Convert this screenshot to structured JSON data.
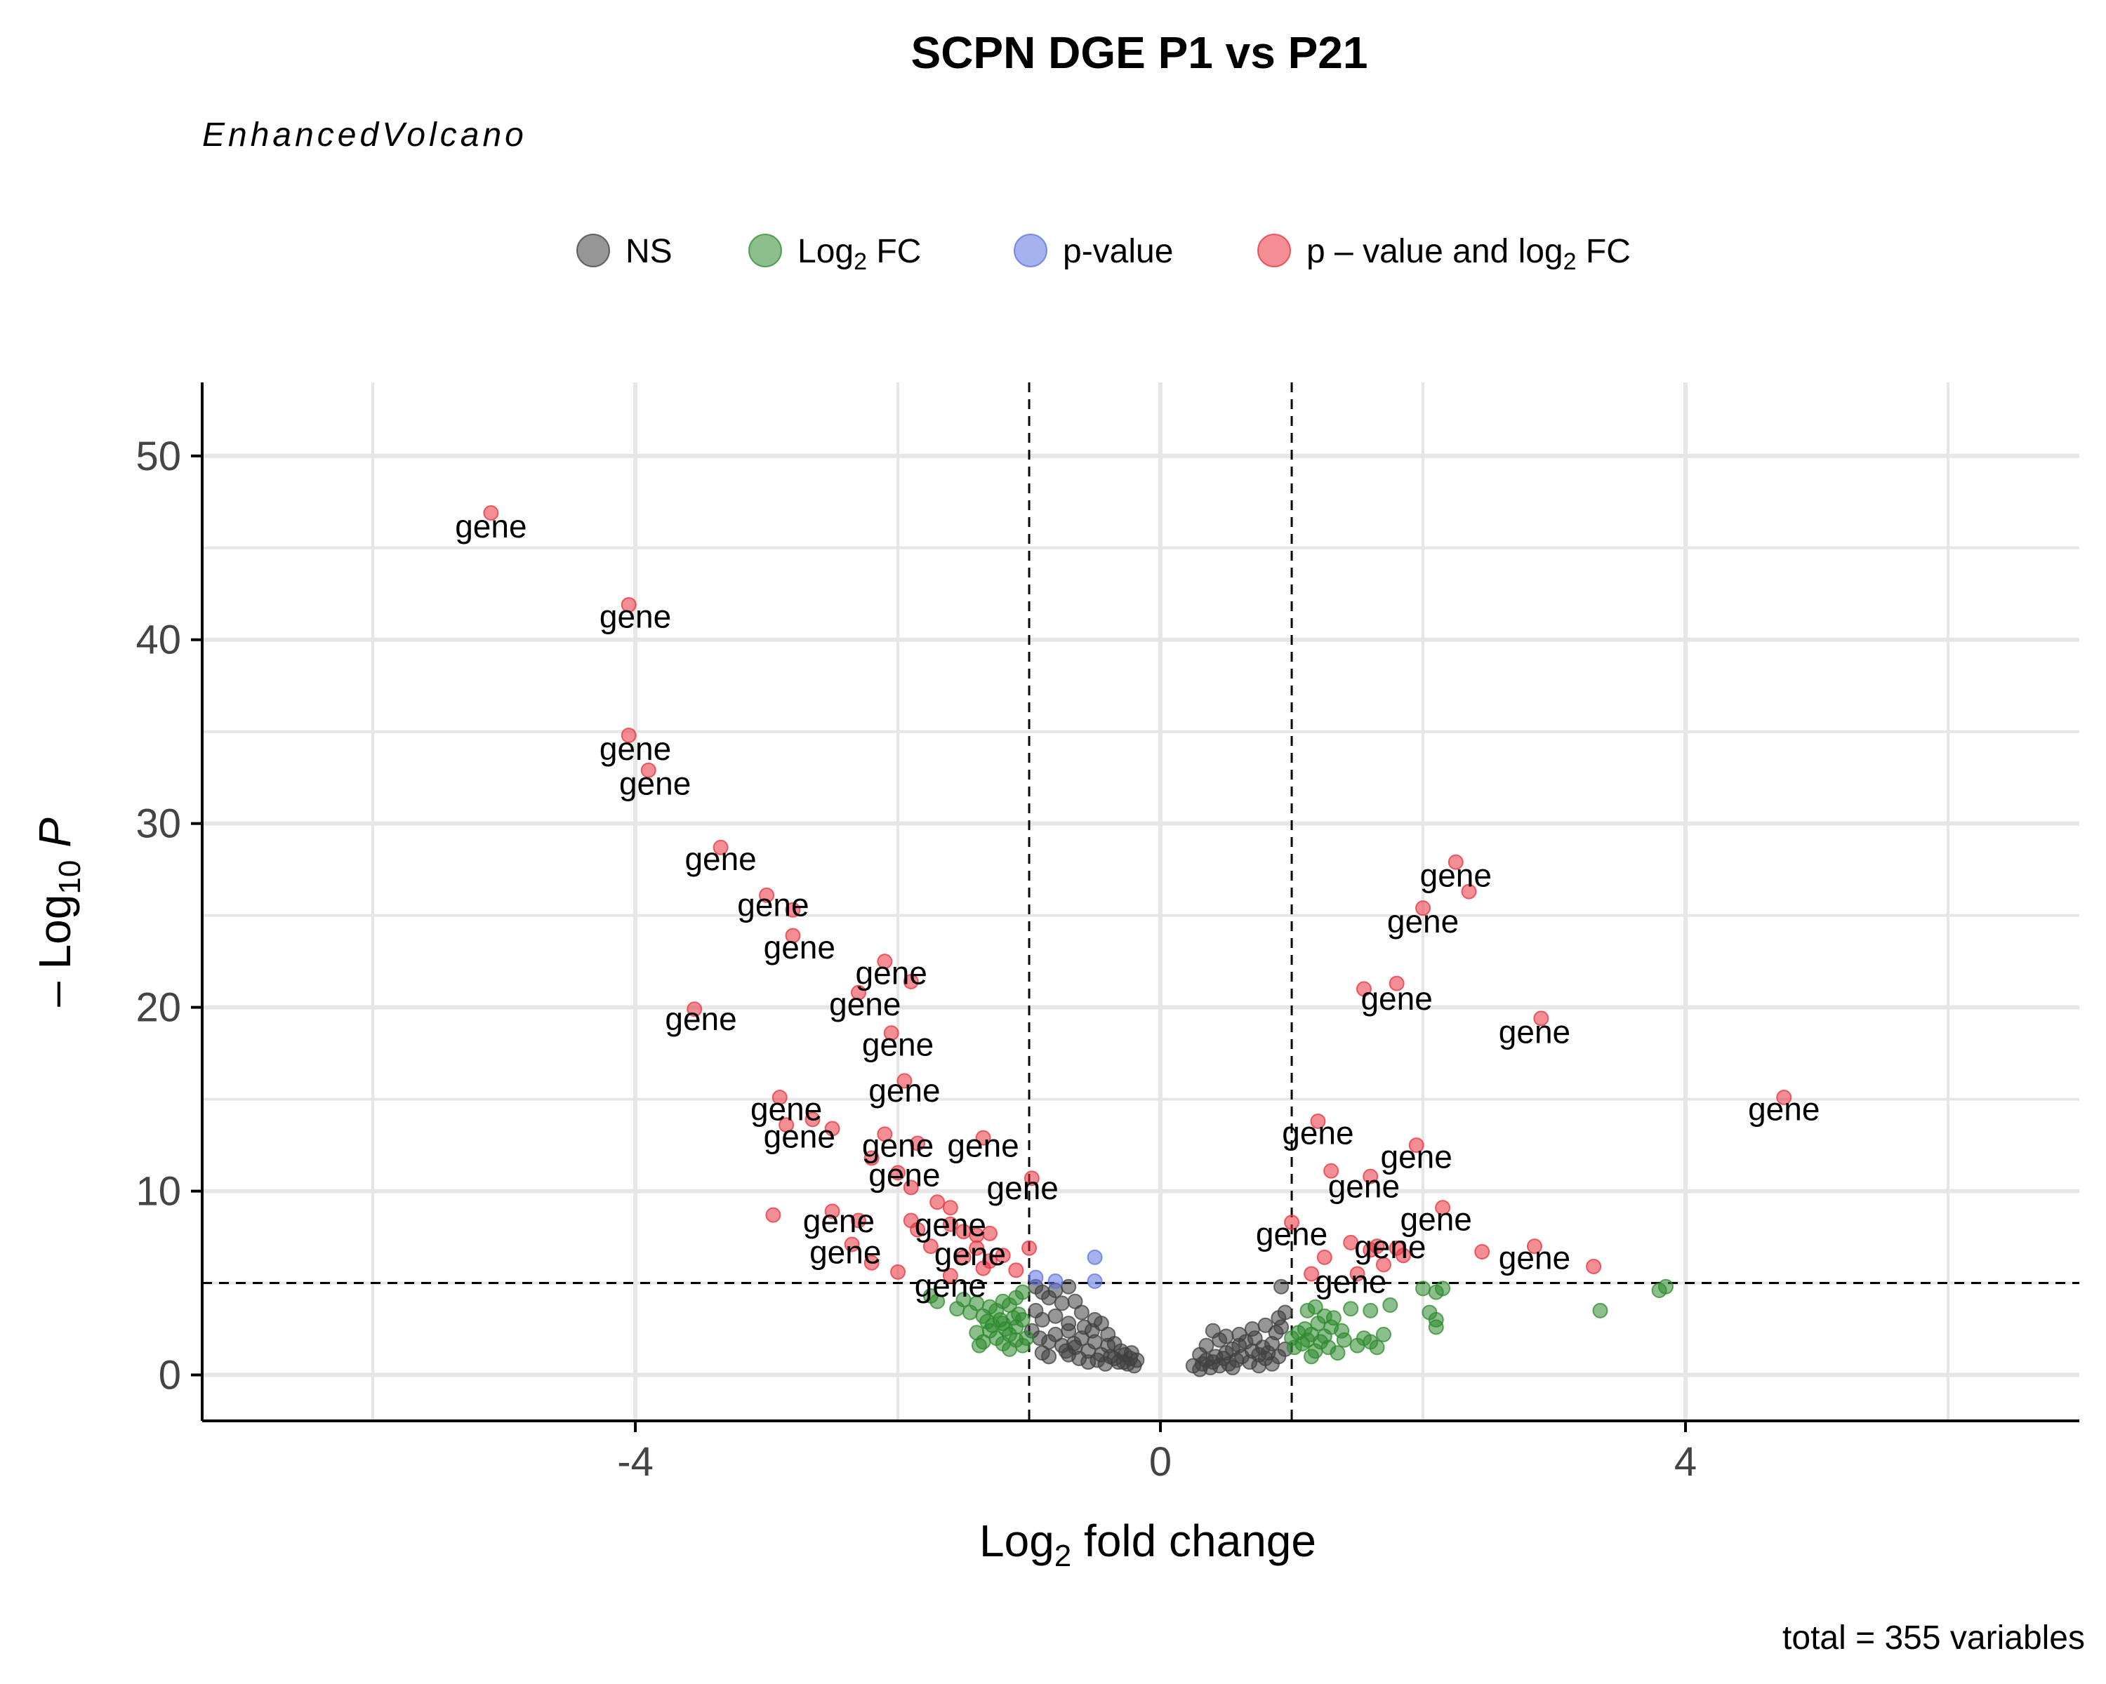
{
  "chart_data": {
    "type": "scatter",
    "title": "SCPN DGE P1 vs P21",
    "subtitle": "EnhancedVolcano",
    "caption": "total = 355 variables",
    "xlabel": {
      "main": "Log",
      "sub": "2",
      "rest": " fold change"
    },
    "ylabel": {
      "pre": "– Log",
      "sub": "10",
      "italic": " P"
    },
    "xlim": [
      -7.3,
      7.0
    ],
    "ylim": [
      -2.5,
      54
    ],
    "x_ticks": [
      -4,
      0,
      4
    ],
    "x_tick_labels": [
      "-4",
      "0",
      "4"
    ],
    "y_ticks": [
      0,
      10,
      20,
      30,
      40,
      50
    ],
    "y_tick_labels": [
      "0",
      "10",
      "20",
      "30",
      "40",
      "50"
    ],
    "grid": true,
    "legend_position": "top",
    "cutoffs": {
      "log2fc": 1,
      "neg_log10_p": 5
    },
    "series": [
      {
        "name": "NS",
        "name_parts": [
          "NS",
          "",
          ""
        ],
        "color": "#404040",
        "points": [
          [
            -0.95,
            4.8
          ],
          [
            -0.9,
            4.5
          ],
          [
            -0.8,
            4.6
          ],
          [
            -0.7,
            4.8
          ],
          [
            -0.85,
            4.2
          ],
          [
            -0.75,
            3.9
          ],
          [
            -0.65,
            4.0
          ],
          [
            -0.95,
            3.5
          ],
          [
            -0.9,
            3.0
          ],
          [
            -0.8,
            3.2
          ],
          [
            -0.7,
            2.8
          ],
          [
            -0.6,
            3.4
          ],
          [
            -0.5,
            3.0
          ],
          [
            -0.45,
            2.8
          ],
          [
            -0.98,
            2.4
          ],
          [
            -0.92,
            2.0
          ],
          [
            -0.85,
            1.8
          ],
          [
            -0.8,
            2.2
          ],
          [
            -0.75,
            1.6
          ],
          [
            -0.7,
            2.4
          ],
          [
            -0.65,
            1.5
          ],
          [
            -0.6,
            2.0
          ],
          [
            -0.55,
            1.3
          ],
          [
            -0.5,
            1.8
          ],
          [
            -0.45,
            1.1
          ],
          [
            -0.4,
            1.6
          ],
          [
            -0.35,
            0.9
          ],
          [
            -0.3,
            1.3
          ],
          [
            -0.28,
            0.7
          ],
          [
            -0.25,
            0.6
          ],
          [
            -0.23,
            0.9
          ],
          [
            -0.2,
            0.5
          ],
          [
            -0.18,
            0.8
          ],
          [
            -0.9,
            1.2
          ],
          [
            -0.85,
            1.0
          ],
          [
            -0.7,
            1.1
          ],
          [
            -0.62,
            0.9
          ],
          [
            -0.55,
            0.7
          ],
          [
            -0.48,
            0.8
          ],
          [
            -0.42,
            0.6
          ],
          [
            -0.38,
            1.0
          ],
          [
            -0.32,
            0.7
          ],
          [
            -0.27,
            1.1
          ],
          [
            -0.22,
            1.2
          ],
          [
            -0.52,
            2.4
          ],
          [
            -0.58,
            2.6
          ],
          [
            -0.66,
            1.7
          ],
          [
            -0.72,
            1.3
          ],
          [
            -0.4,
            2.2
          ],
          [
            -0.35,
            1.7
          ],
          [
            0.25,
            0.5
          ],
          [
            0.3,
            0.3
          ],
          [
            0.32,
            0.6
          ],
          [
            0.35,
            0.8
          ],
          [
            0.38,
            0.4
          ],
          [
            0.4,
            0.7
          ],
          [
            0.42,
            1.0
          ],
          [
            0.45,
            0.5
          ],
          [
            0.48,
            0.9
          ],
          [
            0.5,
            1.2
          ],
          [
            0.52,
            0.6
          ],
          [
            0.55,
            1.4
          ],
          [
            0.58,
            0.8
          ],
          [
            0.6,
            1.6
          ],
          [
            0.62,
            1.0
          ],
          [
            0.65,
            1.8
          ],
          [
            0.68,
            0.7
          ],
          [
            0.7,
            1.3
          ],
          [
            0.72,
            2.0
          ],
          [
            0.75,
            1.1
          ],
          [
            0.78,
            1.5
          ],
          [
            0.8,
            0.9
          ],
          [
            0.82,
            1.2
          ],
          [
            0.85,
            1.7
          ],
          [
            0.88,
            2.3
          ],
          [
            0.9,
            1.0
          ],
          [
            0.92,
            2.6
          ],
          [
            0.95,
            1.4
          ],
          [
            0.4,
            2.4
          ],
          [
            0.45,
            1.9
          ],
          [
            0.5,
            2.1
          ],
          [
            0.6,
            2.2
          ],
          [
            0.7,
            2.5
          ],
          [
            0.8,
            2.7
          ],
          [
            0.9,
            3.1
          ],
          [
            0.95,
            3.4
          ],
          [
            0.92,
            4.8
          ],
          [
            0.35,
            1.6
          ],
          [
            0.55,
            0.4
          ],
          [
            0.75,
            0.5
          ],
          [
            0.3,
            1.1
          ],
          [
            0.85,
            0.6
          ]
        ]
      },
      {
        "name": "Log2 FC",
        "name_parts": [
          "Log",
          "2",
          " FC"
        ],
        "color": "#2e8b2e",
        "points": [
          [
            -1.05,
            4.5
          ],
          [
            -1.1,
            4.2
          ],
          [
            -1.15,
            3.8
          ],
          [
            -1.2,
            4.0
          ],
          [
            -1.25,
            3.5
          ],
          [
            -1.3,
            3.7
          ],
          [
            -1.35,
            3.2
          ],
          [
            -1.4,
            3.9
          ],
          [
            -1.45,
            3.4
          ],
          [
            -1.5,
            4.1
          ],
          [
            -1.55,
            3.6
          ],
          [
            -1.7,
            4.0
          ],
          [
            -1.75,
            4.3
          ],
          [
            -1.05,
            3.0
          ],
          [
            -1.1,
            2.6
          ],
          [
            -1.15,
            2.2
          ],
          [
            -1.2,
            2.8
          ],
          [
            -1.25,
            2.0
          ],
          [
            -1.3,
            2.4
          ],
          [
            -1.35,
            1.8
          ],
          [
            -1.05,
            1.6
          ],
          [
            -1.1,
            1.9
          ],
          [
            -1.15,
            1.4
          ],
          [
            -1.2,
            1.7
          ],
          [
            -1.02,
            2.0
          ],
          [
            -1.08,
            3.3
          ],
          [
            -1.12,
            3.1
          ],
          [
            -1.18,
            2.5
          ],
          [
            -1.22,
            3.0
          ],
          [
            -1.28,
            2.7
          ],
          [
            -1.32,
            2.9
          ],
          [
            -1.4,
            2.3
          ],
          [
            -1.38,
            1.6
          ],
          [
            1.0,
            2.0
          ],
          [
            1.02,
            1.5
          ],
          [
            1.05,
            2.3
          ],
          [
            1.08,
            1.7
          ],
          [
            1.1,
            2.5
          ],
          [
            1.12,
            1.9
          ],
          [
            1.15,
            2.2
          ],
          [
            1.18,
            1.3
          ],
          [
            1.2,
            2.8
          ],
          [
            1.22,
            1.8
          ],
          [
            1.25,
            2.1
          ],
          [
            1.28,
            1.5
          ],
          [
            1.3,
            2.6
          ],
          [
            1.32,
            3.1
          ],
          [
            1.35,
            1.2
          ],
          [
            1.38,
            2.4
          ],
          [
            1.4,
            1.9
          ],
          [
            1.45,
            3.6
          ],
          [
            1.5,
            1.6
          ],
          [
            1.55,
            2.0
          ],
          [
            1.6,
            1.8
          ],
          [
            1.65,
            1.5
          ],
          [
            1.7,
            2.2
          ],
          [
            1.75,
            3.8
          ],
          [
            1.6,
            3.5
          ],
          [
            1.12,
            3.5
          ],
          [
            1.18,
            3.7
          ],
          [
            1.25,
            3.2
          ],
          [
            1.15,
            1.0
          ],
          [
            2.0,
            4.7
          ],
          [
            2.05,
            3.4
          ],
          [
            2.1,
            3.0
          ],
          [
            2.1,
            2.6
          ],
          [
            2.1,
            4.5
          ],
          [
            2.15,
            4.7
          ],
          [
            3.8,
            4.6
          ],
          [
            3.85,
            4.8
          ],
          [
            3.35,
            3.5
          ]
        ]
      },
      {
        "name": "p-value",
        "name_parts": [
          "p-value",
          "",
          ""
        ],
        "color": "#5b72e0",
        "points": [
          [
            -0.95,
            5.3
          ],
          [
            -0.8,
            5.1
          ],
          [
            -0.5,
            6.4
          ],
          [
            -0.5,
            5.1
          ]
        ]
      },
      {
        "name": "p – value and log2 FC",
        "name_parts": [
          "p – value and log",
          "2",
          " FC"
        ],
        "color": "#e8323c",
        "points": [
          [
            -5.1,
            46.9
          ],
          [
            -4.05,
            41.9
          ],
          [
            -4.05,
            34.8
          ],
          [
            -3.9,
            32.9
          ],
          [
            -3.35,
            28.7
          ],
          [
            -3.0,
            26.1
          ],
          [
            -2.8,
            25.3
          ],
          [
            -2.8,
            23.9
          ],
          [
            -2.1,
            22.5
          ],
          [
            -1.9,
            21.4
          ],
          [
            -2.3,
            20.8
          ],
          [
            -3.55,
            19.9
          ],
          [
            -2.05,
            18.6
          ],
          [
            -1.95,
            16.0
          ],
          [
            -2.9,
            15.1
          ],
          [
            -2.65,
            13.9
          ],
          [
            -2.85,
            13.6
          ],
          [
            -2.5,
            13.4
          ],
          [
            -2.1,
            13.1
          ],
          [
            -1.85,
            12.6
          ],
          [
            -1.35,
            12.9
          ],
          [
            -2.2,
            11.8
          ],
          [
            -2.0,
            11.0
          ],
          [
            -1.9,
            10.2
          ],
          [
            -0.98,
            10.7
          ],
          [
            -1.7,
            9.4
          ],
          [
            -1.6,
            9.1
          ],
          [
            -2.95,
            8.7
          ],
          [
            -2.5,
            8.9
          ],
          [
            -2.3,
            8.4
          ],
          [
            -1.9,
            8.4
          ],
          [
            -1.85,
            7.9
          ],
          [
            -1.6,
            8.2
          ],
          [
            -1.5,
            7.8
          ],
          [
            -1.4,
            7.6
          ],
          [
            -1.3,
            7.7
          ],
          [
            -1.0,
            6.9
          ],
          [
            -1.4,
            6.9
          ],
          [
            -1.5,
            6.4
          ],
          [
            -1.3,
            6.2
          ],
          [
            -1.2,
            6.5
          ],
          [
            -2.2,
            6.1
          ],
          [
            -2.0,
            5.6
          ],
          [
            -1.6,
            5.4
          ],
          [
            -1.35,
            5.8
          ],
          [
            -1.1,
            5.7
          ],
          [
            -2.35,
            7.1
          ],
          [
            -1.75,
            7.0
          ],
          [
            2.25,
            27.9
          ],
          [
            2.35,
            26.3
          ],
          [
            2.0,
            25.4
          ],
          [
            1.55,
            21.0
          ],
          [
            1.8,
            21.3
          ],
          [
            2.9,
            19.4
          ],
          [
            4.75,
            15.1
          ],
          [
            1.2,
            13.8
          ],
          [
            1.95,
            12.5
          ],
          [
            1.3,
            11.1
          ],
          [
            1.6,
            10.8
          ],
          [
            2.15,
            9.1
          ],
          [
            1.0,
            8.3
          ],
          [
            1.45,
            7.2
          ],
          [
            1.65,
            7.0
          ],
          [
            1.8,
            6.9
          ],
          [
            2.45,
            6.7
          ],
          [
            2.85,
            7.0
          ],
          [
            3.3,
            5.9
          ],
          [
            1.25,
            6.4
          ],
          [
            1.5,
            5.5
          ],
          [
            1.7,
            6.0
          ],
          [
            1.85,
            6.5
          ],
          [
            1.15,
            5.5
          ],
          [
            1.6,
            6.8
          ]
        ]
      }
    ],
    "point_labels": [
      {
        "text": "gene",
        "x": -5.1,
        "y": 46.1
      },
      {
        "text": "gene",
        "x": -4.0,
        "y": 41.2
      },
      {
        "text": "gene",
        "x": -4.0,
        "y": 34.0
      },
      {
        "text": "gene",
        "x": -3.85,
        "y": 32.1
      },
      {
        "text": "gene",
        "x": -3.35,
        "y": 28.0
      },
      {
        "text": "gene",
        "x": -2.95,
        "y": 25.5
      },
      {
        "text": "gene",
        "x": -2.75,
        "y": 23.2
      },
      {
        "text": "gene",
        "x": -2.05,
        "y": 21.8
      },
      {
        "text": "gene",
        "x": -2.25,
        "y": 20.1
      },
      {
        "text": "gene",
        "x": -3.5,
        "y": 19.3
      },
      {
        "text": "gene",
        "x": -2.0,
        "y": 17.9
      },
      {
        "text": "gene",
        "x": -1.95,
        "y": 15.4
      },
      {
        "text": "gene",
        "x": -2.85,
        "y": 14.4
      },
      {
        "text": "gene",
        "x": -2.75,
        "y": 12.9
      },
      {
        "text": "gene",
        "x": -2.0,
        "y": 12.4
      },
      {
        "text": "gene",
        "x": -1.35,
        "y": 12.4
      },
      {
        "text": "gene",
        "x": -1.95,
        "y": 10.8
      },
      {
        "text": "gene",
        "x": -1.05,
        "y": 10.1
      },
      {
        "text": "gene",
        "x": -2.45,
        "y": 8.3
      },
      {
        "text": "gene",
        "x": -1.6,
        "y": 8.1
      },
      {
        "text": "gene",
        "x": -2.4,
        "y": 6.6
      },
      {
        "text": "gene",
        "x": -1.45,
        "y": 6.5
      },
      {
        "text": "gene",
        "x": -1.6,
        "y": 4.8
      },
      {
        "text": "gene",
        "x": 2.25,
        "y": 27.1
      },
      {
        "text": "gene",
        "x": 2.0,
        "y": 24.6
      },
      {
        "text": "gene",
        "x": 1.8,
        "y": 20.4
      },
      {
        "text": "gene",
        "x": 2.85,
        "y": 18.6
      },
      {
        "text": "gene",
        "x": 4.75,
        "y": 14.4
      },
      {
        "text": "gene",
        "x": 1.2,
        "y": 13.1
      },
      {
        "text": "gene",
        "x": 1.95,
        "y": 11.8
      },
      {
        "text": "gene",
        "x": 1.55,
        "y": 10.2
      },
      {
        "text": "gene",
        "x": 2.1,
        "y": 8.4
      },
      {
        "text": "gene",
        "x": 1.0,
        "y": 7.6
      },
      {
        "text": "gene",
        "x": 1.75,
        "y": 6.9
      },
      {
        "text": "gene",
        "x": 2.85,
        "y": 6.3
      },
      {
        "text": "gene",
        "x": 1.45,
        "y": 5.0
      }
    ]
  }
}
